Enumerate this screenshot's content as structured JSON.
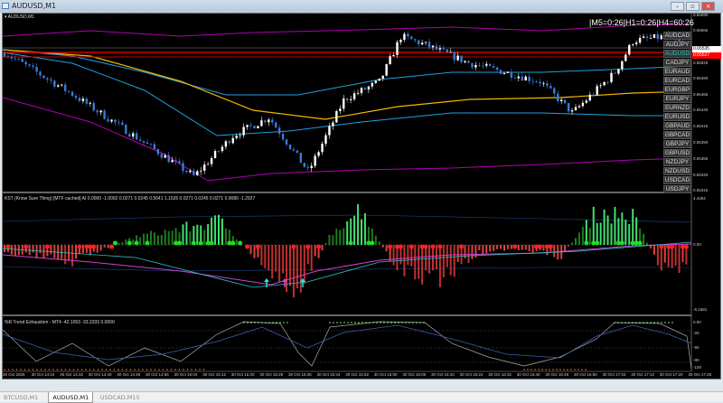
{
  "window": {
    "title": "AUDUSD,M1",
    "minimize_icon": "minimize-icon",
    "maximize_icon": "restore-icon",
    "close_icon": "close-icon"
  },
  "chart": {
    "label": "AUDUSD,M1",
    "mtf_text": "|M5=0:26|H1=0:26|H4=60:26",
    "symbols": [
      "AUDCAD",
      "AUDJPY",
      "AUDUSD",
      "CADJPY",
      "EURAUD",
      "EURCAD",
      "EURGBP",
      "EURJPY",
      "EURNZD",
      "EURUSD",
      "GBPAUD",
      "GBPCAD",
      "GBPJPY",
      "GBPUSD",
      "NZDJPY",
      "NZDUSD",
      "USDCAD",
      "USDJPY"
    ],
    "active_symbol": "AUDUSD",
    "price_axis": [
      "0.65590",
      "0.65565",
      "0.65525",
      "0.65490",
      "0.65465",
      "0.65440",
      "0.65415",
      "0.65390",
      "0.65365",
      "0.65340",
      "0.65315"
    ],
    "bid_label": "0.65535",
    "ask_label": "0.65527",
    "colors": {
      "bull": "#ffffff",
      "bear": "#3a7bd5",
      "upper_band": "#b000b0",
      "blue_ma": "#1ea0e0",
      "yellow_ma": "#f0b800",
      "ask_line": "#ff0000"
    },
    "price_path": [
      [
        "14:16",
        0.6553
      ],
      [
        "14:35",
        0.65465
      ],
      [
        "15:09",
        0.65337
      ],
      [
        "15:20",
        0.65401
      ],
      [
        "15:30",
        0.65429
      ],
      [
        "15:41",
        0.65344
      ],
      [
        "15:51",
        0.65457
      ],
      [
        "16:01",
        0.65485
      ],
      [
        "16:07",
        0.65556
      ],
      [
        "16:14",
        0.65542
      ],
      [
        "16:26",
        0.65514
      ],
      [
        "16:36",
        0.655
      ],
      [
        "16:46",
        0.65485
      ],
      [
        "16:55",
        0.65436
      ],
      [
        "17:07",
        0.655
      ],
      [
        "17:12",
        0.65549
      ],
      [
        "17:22",
        0.65556
      ],
      [
        "17:27",
        0.65535
      ]
    ]
  },
  "kst": {
    "label": "KST (Know Sure Thing) [MTF cached] AI 0.0000 -1.0092 0.0271 0.0245 0.5041 1.1526 0.0271 0.0245 0.0271 0.9080 -1.2927",
    "axis": [
      "4.4294",
      "0.00",
      "-6.1681"
    ],
    "colors": {
      "up": "#00c000",
      "down": "#d02020",
      "signal": "#d040d0",
      "cyan": "#30c0d0"
    }
  },
  "wpr": {
    "label": "%R Trend Exhaustion - MT4 -42.1053 -33.3333 0.0000",
    "axis": [
      "0.00",
      "-20",
      "-50",
      "-80",
      "-100"
    ]
  },
  "time_axis": [
    "30 Oct 2025",
    "30 Oct 14:24",
    "30 Oct 14:32",
    "30 Oct 14:40",
    "30 Oct 14:48",
    "30 Oct 14:56",
    "30 Oct 15:04",
    "30 Oct 15:12",
    "30 Oct 15:20",
    "30 Oct 15:28",
    "30 Oct 15:36",
    "30 Oct 15:44",
    "30 Oct 15:52",
    "30 Oct 16:00",
    "30 Oct 16:08",
    "30 Oct 16:16",
    "30 Oct 16:24",
    "30 Oct 16:32",
    "30 Oct 16:40",
    "30 Oct 16:48",
    "30 Oct 16:56",
    "30 Oct 17:04",
    "30 Oct 17:12",
    "30 Oct 17:20",
    "30 Oct 17:28"
  ],
  "tabs": [
    {
      "label": "BTCUSD,M1"
    },
    {
      "label": "AUDUSD,M1",
      "active": true
    },
    {
      "label": "USDCAD,M15"
    }
  ]
}
